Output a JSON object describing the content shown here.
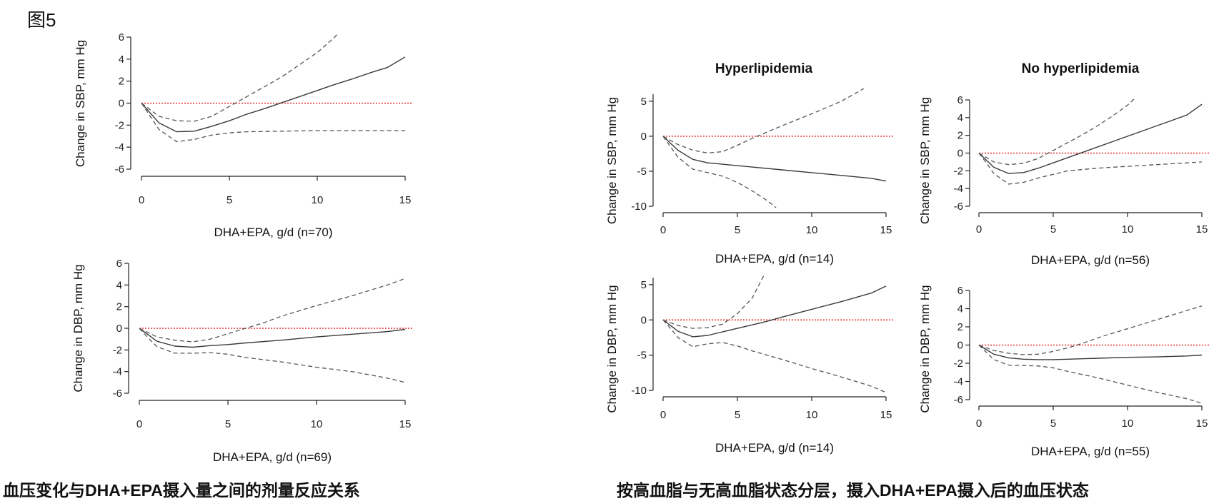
{
  "figure_label": "图5",
  "captions": {
    "left": "血压变化与DHA+EPA摄入量之间的剂量反应关系",
    "right": "按高血脂与无高血脂状态分层，摄入DHA+EPA摄入后的血压状态"
  },
  "colors": {
    "line": "#3a3a3a",
    "ci": "#555555",
    "reference": "#e00000",
    "axis": "#222222"
  },
  "chart_data": [
    {
      "id": "sbp-all",
      "type": "line",
      "title": "",
      "xlabel": "DHA+EPA, g/d (n=70)",
      "ylabel": "Change in SBP, mm Hg",
      "xlim": [
        0,
        15
      ],
      "ylim": [
        -6,
        6
      ],
      "xticks": [
        0,
        5,
        10,
        15
      ],
      "yticks": [
        -6,
        -4,
        -2,
        0,
        2,
        4,
        6
      ],
      "reference_line": 0,
      "series": [
        {
          "role": "estimate",
          "x": [
            0,
            0.5,
            1,
            2,
            3,
            4,
            5,
            6,
            7,
            8,
            9,
            10,
            11,
            12,
            13,
            14,
            15
          ],
          "y": [
            0,
            -0.9,
            -1.8,
            -2.6,
            -2.55,
            -2.1,
            -1.6,
            -1.0,
            -0.5,
            0.05,
            0.6,
            1.15,
            1.7,
            2.2,
            2.75,
            3.25,
            4.2
          ]
        },
        {
          "role": "upper",
          "x": [
            0,
            0.5,
            1,
            2,
            3,
            4,
            5,
            6,
            7,
            8,
            9,
            10,
            11,
            11.2
          ],
          "y": [
            0,
            -0.6,
            -1.2,
            -1.6,
            -1.65,
            -1.2,
            -0.3,
            0.6,
            1.5,
            2.4,
            3.5,
            4.6,
            6.0,
            6.4
          ]
        },
        {
          "role": "lower",
          "x": [
            0,
            0.5,
            1,
            2,
            3,
            4,
            5,
            6,
            8,
            10,
            12,
            15
          ],
          "y": [
            0,
            -1.2,
            -2.4,
            -3.5,
            -3.3,
            -2.9,
            -2.7,
            -2.6,
            -2.55,
            -2.5,
            -2.5,
            -2.5
          ]
        }
      ]
    },
    {
      "id": "dbp-all",
      "type": "line",
      "title": "",
      "xlabel": "DHA+EPA, g/d (n=69)",
      "ylabel": "Change in DBP, mm Hg",
      "xlim": [
        0,
        15
      ],
      "ylim": [
        -6,
        6
      ],
      "xticks": [
        0,
        5,
        10,
        15
      ],
      "yticks": [
        -6,
        -4,
        -2,
        0,
        2,
        4,
        6
      ],
      "reference_line": 0,
      "series": [
        {
          "role": "estimate",
          "x": [
            0,
            0.5,
            1,
            2,
            3,
            4,
            5,
            6,
            8,
            10,
            12,
            14,
            15
          ],
          "y": [
            0,
            -0.6,
            -1.2,
            -1.65,
            -1.75,
            -1.6,
            -1.5,
            -1.35,
            -1.1,
            -0.8,
            -0.55,
            -0.3,
            -0.1
          ]
        },
        {
          "role": "upper",
          "x": [
            0,
            0.5,
            1,
            2,
            3,
            4,
            5,
            6,
            7,
            8,
            10,
            12,
            14,
            15
          ],
          "y": [
            0,
            -0.4,
            -0.8,
            -1.1,
            -1.25,
            -1.0,
            -0.5,
            0.0,
            0.5,
            1.1,
            2.1,
            3.0,
            4.0,
            4.6
          ]
        },
        {
          "role": "lower",
          "x": [
            0,
            0.5,
            1,
            2,
            3,
            4,
            5,
            6,
            8,
            10,
            12,
            14,
            15
          ],
          "y": [
            0,
            -0.9,
            -1.7,
            -2.3,
            -2.3,
            -2.25,
            -2.4,
            -2.7,
            -3.1,
            -3.6,
            -4.0,
            -4.6,
            -5.0
          ]
        }
      ]
    },
    {
      "id": "sbp-hyper",
      "type": "line",
      "title": "Hyperlipidemia",
      "xlabel": "DHA+EPA, g/d (n=14)",
      "ylabel": "Change in SBP, mm Hg",
      "xlim": [
        0,
        15
      ],
      "ylim": [
        -10,
        6
      ],
      "xticks": [
        0,
        5,
        10,
        15
      ],
      "yticks": [
        -10,
        -5,
        0,
        5
      ],
      "reference_line": 0,
      "series": [
        {
          "role": "estimate",
          "x": [
            0,
            0.5,
            1,
            2,
            3,
            4,
            5,
            6,
            8,
            10,
            12,
            14,
            15
          ],
          "y": [
            0,
            -1.0,
            -2.0,
            -3.3,
            -3.8,
            -4.0,
            -4.2,
            -4.4,
            -4.8,
            -5.2,
            -5.6,
            -6.0,
            -6.4
          ]
        },
        {
          "role": "upper",
          "x": [
            0,
            0.5,
            1,
            2,
            3,
            4,
            5,
            6,
            7,
            8,
            10,
            12,
            13.5
          ],
          "y": [
            0,
            -0.6,
            -1.2,
            -2.0,
            -2.4,
            -2.2,
            -1.3,
            -0.3,
            0.6,
            1.5,
            3.2,
            5.0,
            6.8
          ]
        },
        {
          "role": "lower",
          "x": [
            0,
            0.5,
            1,
            2,
            3,
            4,
            5,
            6,
            7,
            7.6
          ],
          "y": [
            0,
            -1.5,
            -3.0,
            -4.7,
            -5.2,
            -5.7,
            -6.6,
            -7.8,
            -9.2,
            -10.2
          ]
        }
      ]
    },
    {
      "id": "sbp-nohyper",
      "type": "line",
      "title": "No hyperlipidemia",
      "xlabel": "DHA+EPA, g/d (n=56)",
      "ylabel": "Change in SBP, mm Hg",
      "xlim": [
        0,
        15
      ],
      "ylim": [
        -6,
        6
      ],
      "xticks": [
        0,
        5,
        10,
        15
      ],
      "yticks": [
        -6,
        -4,
        -2,
        0,
        2,
        4,
        6
      ],
      "reference_line": 0,
      "series": [
        {
          "role": "estimate",
          "x": [
            0,
            0.5,
            1,
            2,
            3,
            4,
            5,
            6,
            7,
            8,
            9,
            10,
            11,
            12,
            13,
            14,
            15
          ],
          "y": [
            0,
            -0.8,
            -1.6,
            -2.3,
            -2.2,
            -1.7,
            -1.1,
            -0.5,
            0.1,
            0.7,
            1.3,
            1.9,
            2.5,
            3.1,
            3.7,
            4.3,
            5.5
          ]
        },
        {
          "role": "upper",
          "x": [
            0,
            0.5,
            1,
            2,
            3,
            4,
            5,
            6,
            7,
            8,
            9,
            10,
            10.5
          ],
          "y": [
            0,
            -0.5,
            -1.0,
            -1.3,
            -1.15,
            -0.6,
            0.3,
            1.2,
            2.1,
            3.1,
            4.2,
            5.4,
            6.2
          ]
        },
        {
          "role": "lower",
          "x": [
            0,
            0.5,
            1,
            2,
            3,
            4,
            5,
            6,
            8,
            10,
            12,
            14,
            15
          ],
          "y": [
            0,
            -1.1,
            -2.3,
            -3.5,
            -3.3,
            -2.8,
            -2.4,
            -2.0,
            -1.7,
            -1.5,
            -1.3,
            -1.1,
            -1.0
          ]
        }
      ]
    },
    {
      "id": "dbp-hyper",
      "type": "line",
      "title": "",
      "xlabel": "DHA+EPA, g/d (n=14)",
      "ylabel": "Change in DBP, mm Hg",
      "xlim": [
        0,
        15
      ],
      "ylim": [
        -10,
        6
      ],
      "xticks": [
        0,
        5,
        10,
        15
      ],
      "yticks": [
        -10,
        -5,
        0,
        5
      ],
      "reference_line": 0,
      "series": [
        {
          "role": "estimate",
          "x": [
            0,
            0.5,
            1,
            2,
            3,
            4,
            5,
            6,
            7,
            8,
            10,
            12,
            14,
            15
          ],
          "y": [
            0,
            -0.8,
            -1.6,
            -2.4,
            -2.2,
            -1.7,
            -1.2,
            -0.7,
            -0.2,
            0.4,
            1.5,
            2.6,
            3.8,
            4.8
          ]
        },
        {
          "role": "upper",
          "x": [
            0,
            0.5,
            1,
            2,
            3,
            4,
            5,
            6,
            6.8
          ],
          "y": [
            0,
            -0.4,
            -0.8,
            -1.2,
            -1.1,
            -0.6,
            0.9,
            3.1,
            6.4
          ]
        },
        {
          "role": "lower",
          "x": [
            0,
            0.5,
            1,
            2,
            3,
            4,
            5,
            6,
            8,
            10,
            12,
            14,
            15
          ],
          "y": [
            0,
            -1.2,
            -2.5,
            -3.8,
            -3.4,
            -3.2,
            -3.7,
            -4.4,
            -5.6,
            -6.9,
            -8.1,
            -9.4,
            -10.3
          ]
        }
      ]
    },
    {
      "id": "dbp-nohyper",
      "type": "line",
      "title": "",
      "xlabel": "DHA+EPA, g/d (n=55)",
      "ylabel": "Change in DBP, mm Hg",
      "xlim": [
        0,
        15
      ],
      "ylim": [
        -6,
        6
      ],
      "xticks": [
        0,
        5,
        10,
        15
      ],
      "yticks": [
        -6,
        -4,
        -2,
        0,
        2,
        4,
        6
      ],
      "reference_line": 0,
      "series": [
        {
          "role": "estimate",
          "x": [
            0,
            0.5,
            1,
            2,
            3,
            4,
            5,
            6,
            8,
            10,
            12,
            14,
            15
          ],
          "y": [
            0,
            -0.5,
            -1.0,
            -1.4,
            -1.55,
            -1.6,
            -1.6,
            -1.55,
            -1.45,
            -1.35,
            -1.3,
            -1.2,
            -1.1
          ]
        },
        {
          "role": "upper",
          "x": [
            0,
            0.5,
            1,
            2,
            3,
            4,
            5,
            6,
            7,
            8,
            10,
            12,
            14,
            15
          ],
          "y": [
            0,
            -0.3,
            -0.6,
            -0.9,
            -1.05,
            -1.0,
            -0.7,
            -0.3,
            0.2,
            0.8,
            1.8,
            2.8,
            3.8,
            4.3
          ]
        },
        {
          "role": "lower",
          "x": [
            0,
            0.5,
            1,
            2,
            3,
            4,
            5,
            6,
            8,
            10,
            12,
            14,
            15
          ],
          "y": [
            0,
            -0.8,
            -1.6,
            -2.2,
            -2.25,
            -2.3,
            -2.5,
            -2.9,
            -3.6,
            -4.4,
            -5.2,
            -5.9,
            -6.4
          ]
        }
      ]
    }
  ]
}
